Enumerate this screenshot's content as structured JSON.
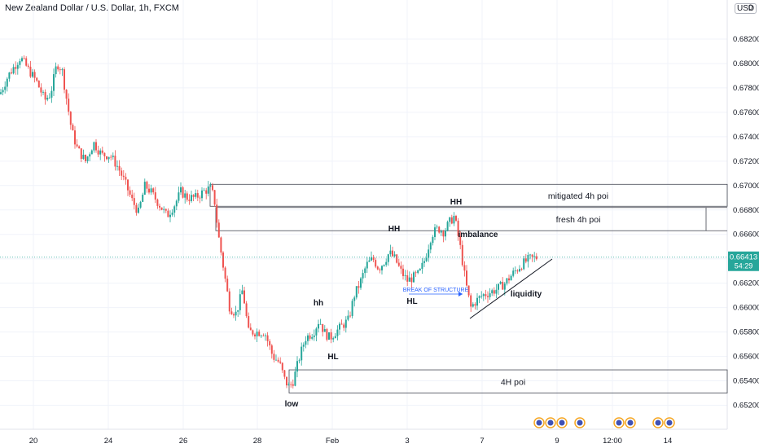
{
  "title": "New Zealand Dollar / U.S. Dollar, 1h, FXCM",
  "currency": "USD",
  "price_badge": {
    "price": "0.66413",
    "countdown": "54:29",
    "color": "#26a69a"
  },
  "colors": {
    "up": "#26a69a",
    "down": "#ef5350",
    "grid": "#f0f3fa",
    "zone": "#434651"
  },
  "chart_data": {
    "type": "candlestick",
    "x_tick_labels": [
      "20",
      "24",
      "26",
      "28",
      "Feb",
      "3",
      "7",
      "9",
      "12:00",
      "14"
    ],
    "y_tick_labels": [
      "0.68200",
      "0.68000",
      "0.67800",
      "0.67600",
      "0.67400",
      "0.67200",
      "0.67000",
      "0.66800",
      "0.66600",
      "0.66400",
      "0.66200",
      "0.66000",
      "0.65800",
      "0.65600",
      "0.65400",
      "0.65200"
    ],
    "ylim": [
      0.6513,
      0.684
    ],
    "close_path": [
      [
        0,
        0.6775
      ],
      [
        10,
        0.679
      ],
      [
        25,
        0.6805
      ],
      [
        35,
        0.6795
      ],
      [
        45,
        0.6785
      ],
      [
        55,
        0.677
      ],
      [
        62,
        0.6775
      ],
      [
        70,
        0.68
      ],
      [
        76,
        0.6795
      ],
      [
        82,
        0.677
      ],
      [
        88,
        0.6745
      ],
      [
        95,
        0.673
      ],
      [
        105,
        0.672
      ],
      [
        115,
        0.6735
      ],
      [
        125,
        0.6725
      ],
      [
        135,
        0.6725
      ],
      [
        145,
        0.6715
      ],
      [
        155,
        0.67
      ],
      [
        162,
        0.6688
      ],
      [
        170,
        0.6678
      ],
      [
        178,
        0.67
      ],
      [
        185,
        0.6695
      ],
      [
        195,
        0.6685
      ],
      [
        205,
        0.6675
      ],
      [
        215,
        0.6685
      ],
      [
        222,
        0.6695
      ],
      [
        230,
        0.669
      ],
      [
        240,
        0.669
      ],
      [
        250,
        0.6695
      ],
      [
        258,
        0.6698
      ],
      [
        263,
        0.669
      ],
      [
        268,
        0.666
      ],
      [
        275,
        0.663
      ],
      [
        282,
        0.66
      ],
      [
        290,
        0.6595
      ],
      [
        298,
        0.6615
      ],
      [
        305,
        0.658
      ],
      [
        315,
        0.658
      ],
      [
        325,
        0.658
      ],
      [
        335,
        0.656
      ],
      [
        343,
        0.6555
      ],
      [
        350,
        0.654
      ],
      [
        355,
        0.6535
      ],
      [
        360,
        0.654
      ],
      [
        368,
        0.656
      ],
      [
        375,
        0.6575
      ],
      [
        385,
        0.658
      ],
      [
        392,
        0.659
      ],
      [
        398,
        0.658
      ],
      [
        405,
        0.6575
      ],
      [
        412,
        0.658
      ],
      [
        420,
        0.6585
      ],
      [
        428,
        0.659
      ],
      [
        435,
        0.661
      ],
      [
        442,
        0.662
      ],
      [
        450,
        0.6635
      ],
      [
        458,
        0.664
      ],
      [
        465,
        0.6632
      ],
      [
        472,
        0.6638
      ],
      [
        478,
        0.6645
      ],
      [
        485,
        0.664
      ],
      [
        492,
        0.663
      ],
      [
        500,
        0.6622
      ],
      [
        508,
        0.6625
      ],
      [
        515,
        0.6628
      ],
      [
        522,
        0.664
      ],
      [
        530,
        0.666
      ],
      [
        538,
        0.6665
      ],
      [
        545,
        0.6662
      ],
      [
        552,
        0.667
      ],
      [
        558,
        0.6675
      ],
      [
        565,
        0.665
      ],
      [
        572,
        0.662
      ],
      [
        578,
        0.66
      ],
      [
        584,
        0.6605
      ],
      [
        592,
        0.661
      ],
      [
        600,
        0.6612
      ],
      [
        610,
        0.6615
      ],
      [
        620,
        0.662
      ],
      [
        630,
        0.6628
      ],
      [
        640,
        0.6635
      ],
      [
        650,
        0.664
      ],
      [
        660,
        0.6641
      ]
    ],
    "zones": [
      {
        "label": "mitigated 4h poi",
        "top": 0.6701,
        "bottom": 0.6683
      },
      {
        "label": "fresh 4h poi",
        "top": 0.6682,
        "bottom": 0.6663
      },
      {
        "label": "4H poi",
        "top": 0.6549,
        "bottom": 0.653
      }
    ],
    "annotations": [
      "HH",
      "HH",
      "hh",
      "HL",
      "HL",
      "low",
      "imbalance",
      "liquidity",
      "BREAK OF STRUCTURE"
    ]
  }
}
